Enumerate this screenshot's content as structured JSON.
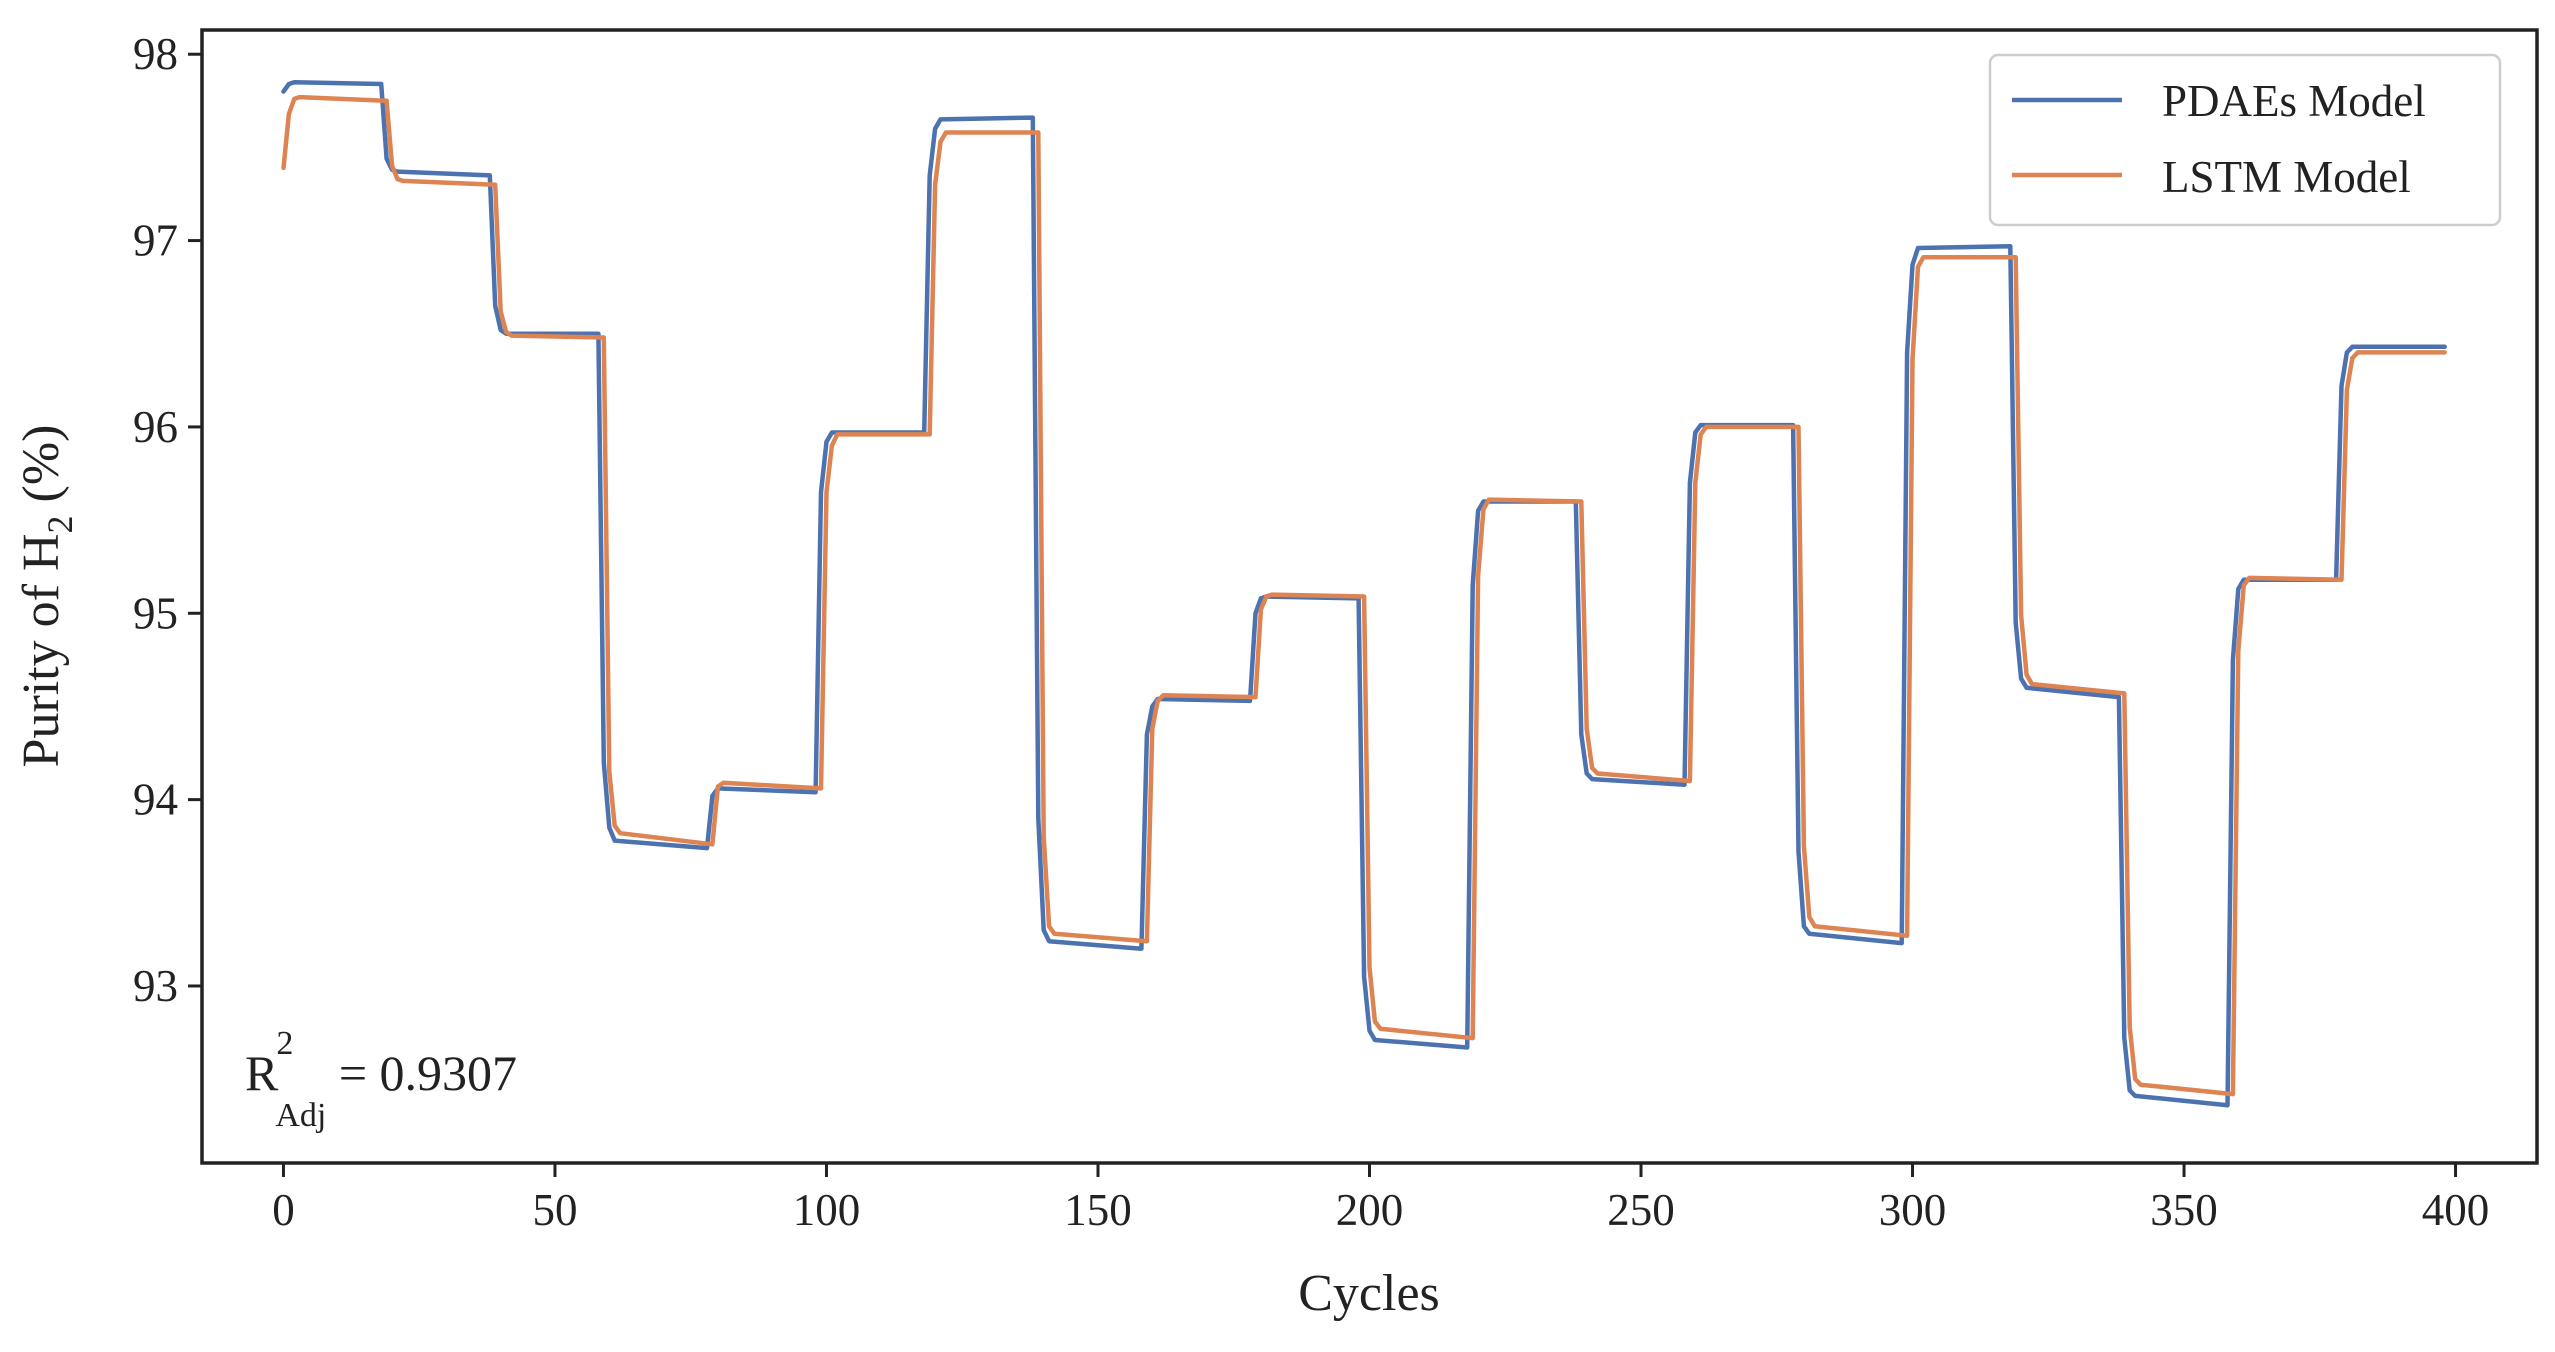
{
  "chart_data": {
    "type": "line",
    "title": "",
    "xlabel": "Cycles",
    "ylabel": "Purity of H",
    "ylabel_subscript": "2",
    "ylabel_suffix": " (%)",
    "xlim": [
      -15,
      415
    ],
    "ylim": [
      92.05,
      98.13
    ],
    "xticks": [
      0,
      50,
      100,
      150,
      200,
      250,
      300,
      350,
      400
    ],
    "xtick_labels": [
      "0",
      "50",
      "100",
      "150",
      "200",
      "250",
      "300",
      "350",
      "400"
    ],
    "yticks": [
      93,
      94,
      95,
      96,
      97,
      98
    ],
    "ytick_labels": [
      "93",
      "94",
      "95",
      "96",
      "97",
      "98"
    ],
    "grid": false,
    "legend_position": "top-right",
    "annotation": {
      "base": "R",
      "sup": "2",
      "sub": "Adj",
      "value": " = 0.9307"
    },
    "series": [
      {
        "name": "PDAEs Model",
        "color": "#4c72b0",
        "points": [
          [
            0,
            97.8
          ],
          [
            1,
            97.84
          ],
          [
            2,
            97.85
          ],
          [
            18,
            97.84
          ],
          [
            19,
            97.44
          ],
          [
            20,
            97.38
          ],
          [
            21,
            97.37
          ],
          [
            38,
            97.35
          ],
          [
            39,
            96.65
          ],
          [
            40,
            96.52
          ],
          [
            41,
            96.5
          ],
          [
            58,
            96.5
          ],
          [
            59,
            94.2
          ],
          [
            60,
            93.85
          ],
          [
            61,
            93.78
          ],
          [
            78,
            93.74
          ],
          [
            79,
            94.02
          ],
          [
            80,
            94.06
          ],
          [
            98,
            94.04
          ],
          [
            99,
            95.65
          ],
          [
            100,
            95.92
          ],
          [
            101,
            95.97
          ],
          [
            118,
            95.97
          ],
          [
            119,
            97.35
          ],
          [
            120,
            97.6
          ],
          [
            121,
            97.65
          ],
          [
            138,
            97.66
          ],
          [
            139,
            93.9
          ],
          [
            140,
            93.3
          ],
          [
            141,
            93.24
          ],
          [
            158,
            93.2
          ],
          [
            159,
            94.35
          ],
          [
            160,
            94.5
          ],
          [
            161,
            94.54
          ],
          [
            178,
            94.53
          ],
          [
            179,
            95.0
          ],
          [
            180,
            95.08
          ],
          [
            181,
            95.09
          ],
          [
            198,
            95.08
          ],
          [
            199,
            93.05
          ],
          [
            200,
            92.76
          ],
          [
            201,
            92.71
          ],
          [
            218,
            92.67
          ],
          [
            219,
            95.15
          ],
          [
            220,
            95.55
          ],
          [
            221,
            95.6
          ],
          [
            238,
            95.6
          ],
          [
            239,
            94.35
          ],
          [
            240,
            94.14
          ],
          [
            241,
            94.11
          ],
          [
            258,
            94.08
          ],
          [
            259,
            95.7
          ],
          [
            260,
            95.97
          ],
          [
            261,
            96.01
          ],
          [
            278,
            96.01
          ],
          [
            279,
            93.72
          ],
          [
            280,
            93.32
          ],
          [
            281,
            93.28
          ],
          [
            298,
            93.23
          ],
          [
            299,
            96.4
          ],
          [
            300,
            96.87
          ],
          [
            301,
            96.96
          ],
          [
            318,
            96.97
          ],
          [
            319,
            94.95
          ],
          [
            320,
            94.65
          ],
          [
            321,
            94.6
          ],
          [
            338,
            94.55
          ],
          [
            339,
            92.72
          ],
          [
            340,
            92.44
          ],
          [
            341,
            92.41
          ],
          [
            358,
            92.36
          ],
          [
            359,
            94.75
          ],
          [
            360,
            95.13
          ],
          [
            361,
            95.18
          ],
          [
            378,
            95.18
          ],
          [
            379,
            96.22
          ],
          [
            380,
            96.4
          ],
          [
            381,
            96.43
          ],
          [
            398,
            96.43
          ]
        ]
      },
      {
        "name": "LSTM Model",
        "color": "#dd8452",
        "points": [
          [
            0,
            97.39
          ],
          [
            1,
            97.68
          ],
          [
            2,
            97.76
          ],
          [
            3,
            97.77
          ],
          [
            19,
            97.75
          ],
          [
            20,
            97.4
          ],
          [
            21,
            97.33
          ],
          [
            22,
            97.32
          ],
          [
            39,
            97.3
          ],
          [
            40,
            96.62
          ],
          [
            41,
            96.51
          ],
          [
            42,
            96.49
          ],
          [
            59,
            96.48
          ],
          [
            60,
            94.15
          ],
          [
            61,
            93.86
          ],
          [
            62,
            93.82
          ],
          [
            79,
            93.76
          ],
          [
            80,
            94.07
          ],
          [
            81,
            94.09
          ],
          [
            99,
            94.06
          ],
          [
            100,
            95.65
          ],
          [
            101,
            95.9
          ],
          [
            102,
            95.96
          ],
          [
            119,
            95.96
          ],
          [
            120,
            97.3
          ],
          [
            121,
            97.53
          ],
          [
            122,
            97.58
          ],
          [
            139,
            97.58
          ],
          [
            140,
            93.8
          ],
          [
            141,
            93.32
          ],
          [
            142,
            93.28
          ],
          [
            159,
            93.24
          ],
          [
            160,
            94.38
          ],
          [
            161,
            94.53
          ],
          [
            162,
            94.56
          ],
          [
            179,
            94.55
          ],
          [
            180,
            95.02
          ],
          [
            181,
            95.09
          ],
          [
            182,
            95.1
          ],
          [
            199,
            95.09
          ],
          [
            200,
            93.1
          ],
          [
            201,
            92.81
          ],
          [
            202,
            92.77
          ],
          [
            219,
            92.72
          ],
          [
            220,
            95.2
          ],
          [
            221,
            95.56
          ],
          [
            222,
            95.61
          ],
          [
            239,
            95.6
          ],
          [
            240,
            94.38
          ],
          [
            241,
            94.17
          ],
          [
            242,
            94.14
          ],
          [
            259,
            94.1
          ],
          [
            260,
            95.7
          ],
          [
            261,
            95.96
          ],
          [
            262,
            96.0
          ],
          [
            279,
            96.0
          ],
          [
            280,
            93.75
          ],
          [
            281,
            93.37
          ],
          [
            282,
            93.32
          ],
          [
            299,
            93.27
          ],
          [
            300,
            96.36
          ],
          [
            301,
            96.86
          ],
          [
            302,
            96.91
          ],
          [
            319,
            96.91
          ],
          [
            320,
            94.99
          ],
          [
            321,
            94.67
          ],
          [
            322,
            94.62
          ],
          [
            339,
            94.57
          ],
          [
            340,
            92.78
          ],
          [
            341,
            92.5
          ],
          [
            342,
            92.47
          ],
          [
            359,
            92.42
          ],
          [
            360,
            94.8
          ],
          [
            361,
            95.15
          ],
          [
            362,
            95.19
          ],
          [
            379,
            95.18
          ],
          [
            380,
            96.2
          ],
          [
            381,
            96.37
          ],
          [
            382,
            96.4
          ],
          [
            398,
            96.4
          ]
        ]
      }
    ]
  }
}
